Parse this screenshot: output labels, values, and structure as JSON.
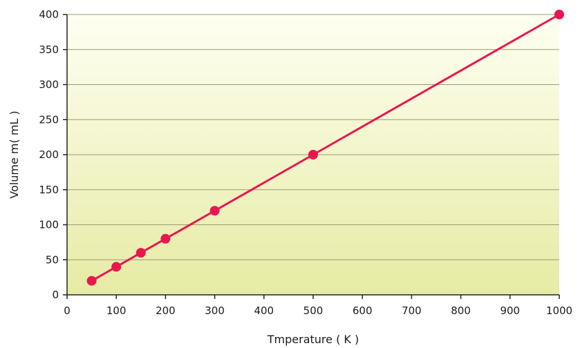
{
  "chart_data": {
    "type": "line",
    "title": "",
    "xlabel": "Tmperature ( K )",
    "ylabel": "Volume m( mL )",
    "xlim": [
      0,
      1000
    ],
    "ylim": [
      0,
      400
    ],
    "x_ticks": [
      "0",
      "100",
      "200",
      "300",
      "400",
      "500",
      "600",
      "700",
      "800",
      "900",
      "1000"
    ],
    "y_ticks": [
      "0",
      "50",
      "100",
      "150",
      "200",
      "250",
      "300",
      "350",
      "400"
    ],
    "grid": "horizontal",
    "background": "gradient-yellow",
    "series": [
      {
        "x": [
          50,
          100,
          150,
          200,
          300,
          500,
          1000
        ],
        "values": [
          20,
          40,
          60,
          80,
          120,
          200,
          400
        ],
        "color": "#e8174f"
      }
    ]
  }
}
